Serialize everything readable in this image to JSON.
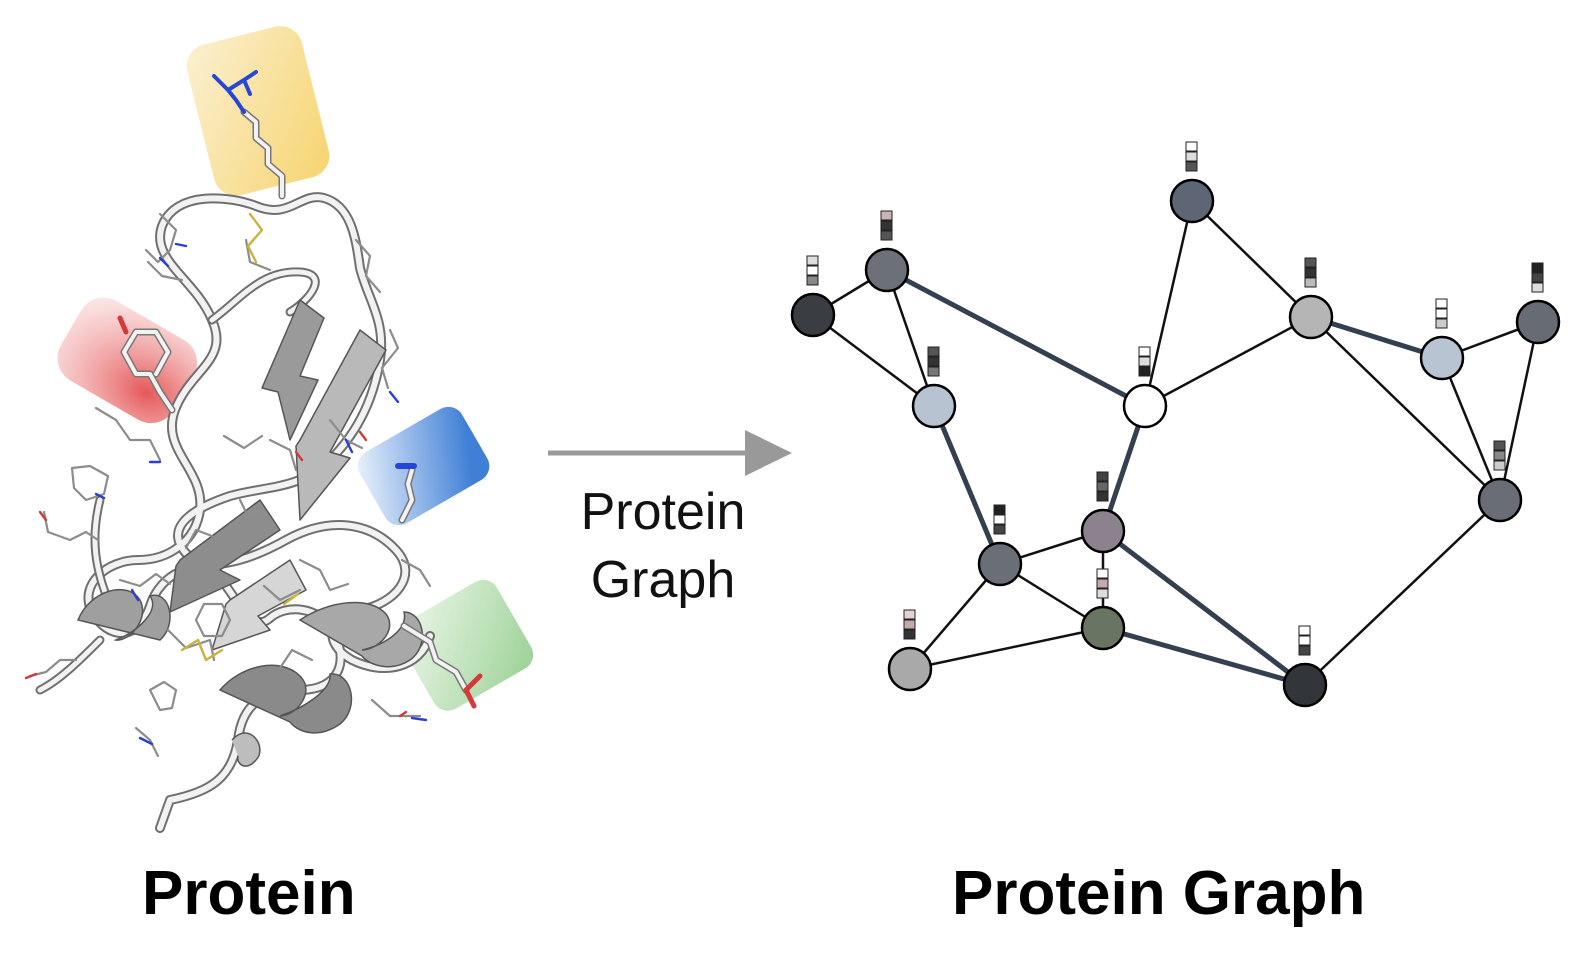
{
  "captions": {
    "left": "Protein",
    "right": "Protein Graph"
  },
  "arrow": {
    "label_line1": "Protein",
    "label_line2": "Graph",
    "color": "#999999"
  },
  "protein": {
    "highlights": [
      {
        "name": "arginine-sidechain",
        "color": "#f4d67a"
      },
      {
        "name": "tyrosine-sidechain",
        "color": "#e25555"
      },
      {
        "name": "blue-sidechain",
        "color": "#4a86d8"
      },
      {
        "name": "glutamate-sidechain",
        "color": "#9fd39a"
      }
    ]
  },
  "graph": {
    "nodes": [
      {
        "id": "n1",
        "color": "#3a3d42",
        "feature": [
          "#dddddd",
          "#ffffff",
          "#888888"
        ]
      },
      {
        "id": "n2",
        "color": "#6c7078",
        "feature": [
          "#c9b5b5",
          "#333333",
          "#555555"
        ]
      },
      {
        "id": "n3",
        "color": "#b8c3d1",
        "feature": [
          "#555555",
          "#333333",
          "#777777"
        ]
      },
      {
        "id": "n4",
        "color": "#5e6675",
        "feature": [
          "#ffffff",
          "#dddddd",
          "#555555"
        ]
      },
      {
        "id": "n5",
        "color": "#ffffff",
        "feature": [
          "#ffffff",
          "#dddddd",
          "#222222"
        ]
      },
      {
        "id": "n6",
        "color": "#b5b5b5",
        "feature": [
          "#555555",
          "#333333",
          "#bbbbbb"
        ]
      },
      {
        "id": "n7",
        "color": "#b9c4d2",
        "feature": [
          "#ffffff",
          "#ffffff",
          "#cccccc"
        ]
      },
      {
        "id": "n8",
        "color": "#676b73",
        "feature": [
          "#222222",
          "#444444",
          "#dddddd"
        ]
      },
      {
        "id": "n9",
        "color": "#6a6e76",
        "feature": [
          "#222222",
          "#ffffff",
          "#444444"
        ]
      },
      {
        "id": "n10",
        "color": "#8b828e",
        "feature": [
          "#444444",
          "#666666",
          "#333333"
        ]
      },
      {
        "id": "n11",
        "color": "#696e76",
        "feature": [
          "#555555",
          "#888888",
          "#cccccc"
        ]
      },
      {
        "id": "n12",
        "color": "#a9a9a9",
        "feature": [
          "#e2d2d2",
          "#c4a9a9",
          "#333333"
        ]
      },
      {
        "id": "n13",
        "color": "#6a7463",
        "feature": [
          "#ffffff",
          "#c4a9a9",
          "#dddddd"
        ]
      },
      {
        "id": "n14",
        "color": "#32363b",
        "feature": [
          "#ffffff",
          "#ffffff",
          "#444444"
        ]
      }
    ],
    "edges": [
      {
        "from": "n1",
        "to": "n2",
        "emphasis": false
      },
      {
        "from": "n1",
        "to": "n3",
        "emphasis": false
      },
      {
        "from": "n2",
        "to": "n3",
        "emphasis": false
      },
      {
        "from": "n2",
        "to": "n5",
        "emphasis": true
      },
      {
        "from": "n3",
        "to": "n9",
        "emphasis": true
      },
      {
        "from": "n4",
        "to": "n5",
        "emphasis": false
      },
      {
        "from": "n4",
        "to": "n6",
        "emphasis": false
      },
      {
        "from": "n5",
        "to": "n6",
        "emphasis": false
      },
      {
        "from": "n5",
        "to": "n10",
        "emphasis": true
      },
      {
        "from": "n6",
        "to": "n7",
        "emphasis": true
      },
      {
        "from": "n6",
        "to": "n11",
        "emphasis": false
      },
      {
        "from": "n7",
        "to": "n8",
        "emphasis": false
      },
      {
        "from": "n7",
        "to": "n11",
        "emphasis": false
      },
      {
        "from": "n8",
        "to": "n11",
        "emphasis": false
      },
      {
        "from": "n9",
        "to": "n10",
        "emphasis": false
      },
      {
        "from": "n9",
        "to": "n12",
        "emphasis": false
      },
      {
        "from": "n9",
        "to": "n13",
        "emphasis": false
      },
      {
        "from": "n10",
        "to": "n13",
        "emphasis": false
      },
      {
        "from": "n10",
        "to": "n14",
        "emphasis": true
      },
      {
        "from": "n12",
        "to": "n13",
        "emphasis": false
      },
      {
        "from": "n13",
        "to": "n14",
        "emphasis": true
      },
      {
        "from": "n11",
        "to": "n14",
        "emphasis": false
      }
    ],
    "edge_color": "#111111",
    "emphasis_edge_color": "#34404f"
  }
}
